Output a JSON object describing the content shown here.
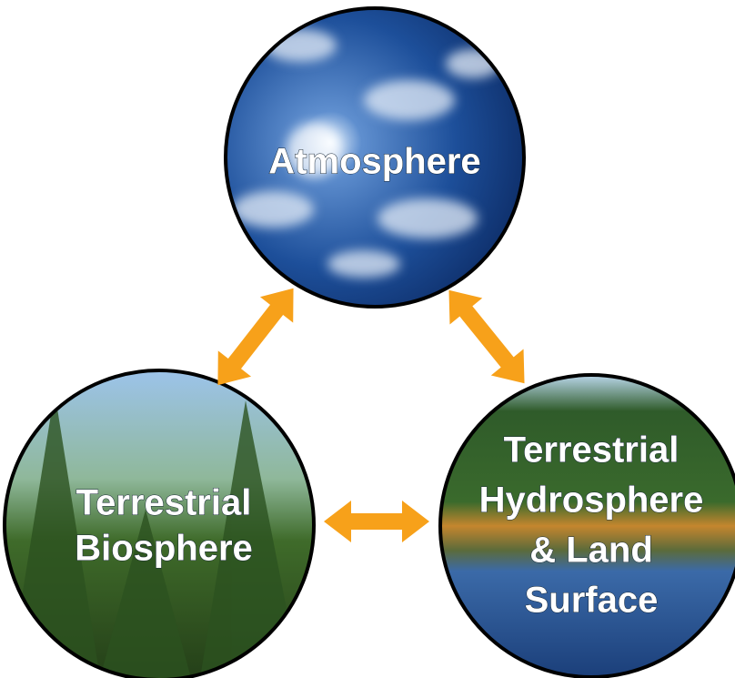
{
  "nodes": [
    {
      "lines": [
        "Atmosphere"
      ]
    },
    {
      "lines": [
        "Terrestrial",
        "Biosphere"
      ]
    },
    {
      "lines": [
        "Terrestrial",
        "Hydrosphere",
        "& Land",
        "Surface"
      ]
    }
  ]
}
